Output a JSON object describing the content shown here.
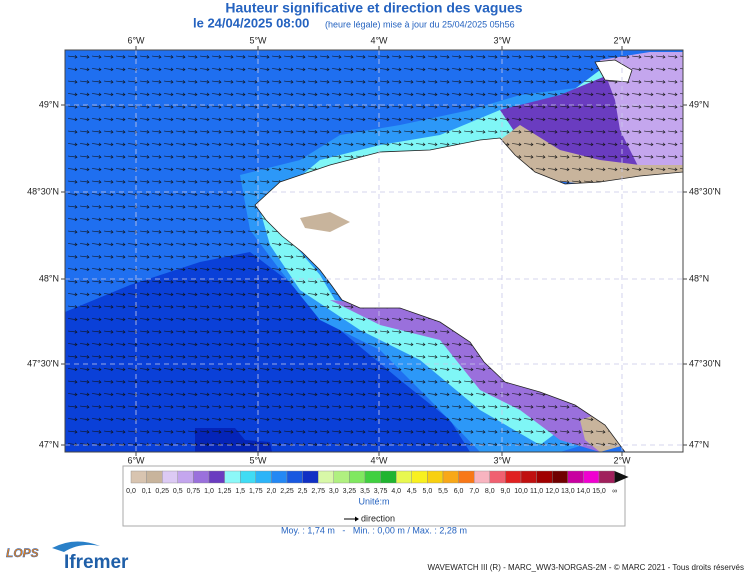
{
  "header": {
    "title": "Hauteur significative et direction des vagues",
    "date": "le 24/04/2025 08:00",
    "update": "(heure légale) mise à jour du 25/04/2025 05h56"
  },
  "map": {
    "longitudes": [
      "6°W",
      "5°W",
      "4°W",
      "3°W",
      "2°W"
    ],
    "latitudes": [
      "49°N",
      "48°30'N",
      "48°N",
      "47°30'N",
      "47°N"
    ]
  },
  "legend": {
    "labels": [
      "0,0",
      "0,1",
      "0,25",
      "0,5",
      "0,75",
      "1,0",
      "1,25",
      "1,5",
      "1,75",
      "2,0",
      "2,25",
      "2,5",
      "2,75",
      "3,0",
      "3,25",
      "3,5",
      "3,75",
      "4,0",
      "4,5",
      "5,0",
      "5,5",
      "6,0",
      "7,0",
      "8,0",
      "9,0",
      "10,0",
      "11,0",
      "12,0",
      "13,0",
      "14,0",
      "15,0",
      "∞"
    ],
    "colors": [
      "#d8c4b0",
      "#c8b49c",
      "#dccaf4",
      "#c4a6ee",
      "#9a70dc",
      "#6a3cc0",
      "#8cf8f8",
      "#40dcf4",
      "#2cb4f8",
      "#2488f4",
      "#1858e0",
      "#1030c4",
      "#d8f8a8",
      "#b0f080",
      "#80e860",
      "#40d040",
      "#20b430",
      "#e8f850",
      "#f8f020",
      "#f8d010",
      "#f8a818",
      "#f87818",
      "#f8b4c0",
      "#f06070",
      "#e02020",
      "#c01010",
      "#a00000",
      "#700000",
      "#c800a0",
      "#f000d0",
      "#a0205c"
    ],
    "unit": "Unité:m",
    "direction": "direction",
    "stats": "Moy. : 1,74 m   -   Min. : 0,00 m / Max. : 2,28 m"
  },
  "footer": {
    "logo1": "LOPS",
    "logo2": "Ifremer",
    "credits": "WAVEWATCH III (R) - MARC_WW3-NORGAS-2M - © MARC 2021 - Tous droits réservés"
  }
}
